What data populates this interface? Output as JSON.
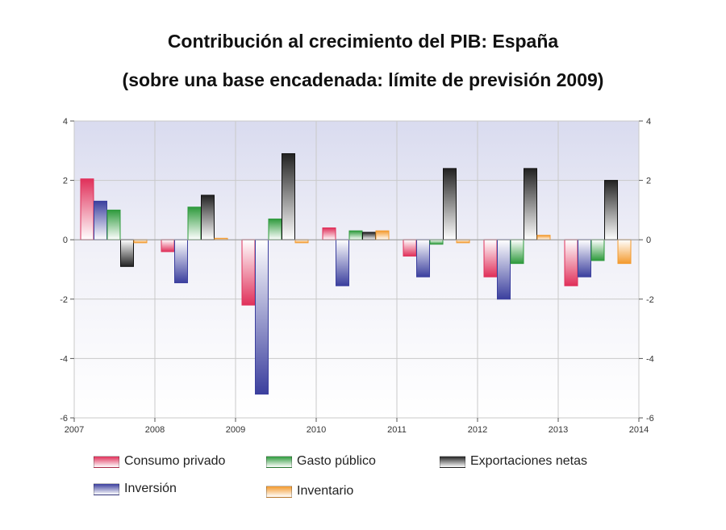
{
  "chart_data": {
    "type": "bar",
    "title": "Contribución al crecimiento del PIB: España",
    "subtitle": "(sobre una base encadenada: límite de previsión 2009)",
    "x_ticks": [
      "2007",
      "2008",
      "2009",
      "2010",
      "2011",
      "2012",
      "2013",
      "2014"
    ],
    "categories": [
      "2007",
      "2008",
      "2009",
      "2010",
      "2011",
      "2012",
      "2013"
    ],
    "ylim": [
      -6,
      4
    ],
    "y_ticks": [
      4,
      2,
      0,
      -2,
      -4,
      -6
    ],
    "grid": true,
    "legend_position": "bottom",
    "series": [
      {
        "name": "Consumo privado",
        "color": "#e0305a",
        "values": [
          2.05,
          -0.4,
          -2.2,
          0.4,
          -0.55,
          -1.25,
          -1.55
        ]
      },
      {
        "name": "Inversión",
        "color": "#3b3f9e",
        "values": [
          1.3,
          -1.45,
          -5.2,
          -1.55,
          -1.25,
          -2.0,
          -1.25
        ]
      },
      {
        "name": "Gasto público",
        "color": "#2e9a3c",
        "values": [
          1.0,
          1.1,
          0.7,
          0.3,
          -0.15,
          -0.8,
          -0.7
        ]
      },
      {
        "name": "Exportaciones netas",
        "color": "#222222",
        "values": [
          -0.9,
          1.5,
          2.9,
          0.25,
          2.4,
          2.4,
          2.0
        ]
      },
      {
        "name": "Inventario",
        "color": "#f39a2e",
        "values": [
          -0.1,
          0.05,
          -0.1,
          0.3,
          -0.1,
          0.15,
          -0.8
        ]
      }
    ]
  }
}
